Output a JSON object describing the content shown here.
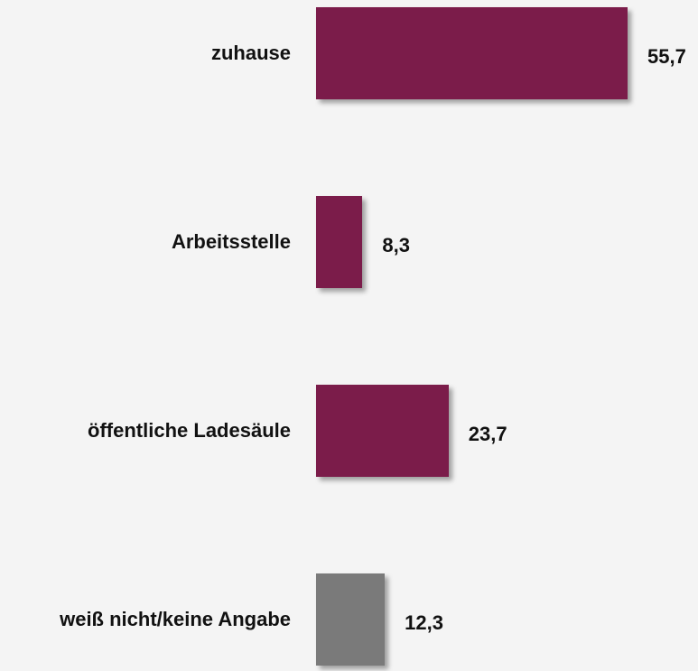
{
  "chart_data": {
    "type": "barh",
    "categories": [
      "zuhause",
      "Arbeitsstelle",
      "öffentliche Ladesäule",
      "weiß nicht/keine Angabe"
    ],
    "values": [
      55.7,
      8.3,
      23.7,
      12.3
    ],
    "value_labels": [
      "55,7",
      "8,3",
      "23,7",
      "12,3"
    ],
    "colors": [
      "#7b1c4a",
      "#7b1c4a",
      "#7b1c4a",
      "#7a7a7a"
    ]
  }
}
